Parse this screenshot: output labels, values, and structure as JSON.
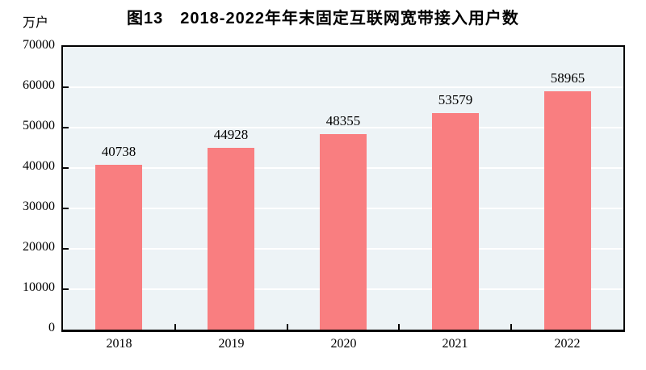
{
  "figure": {
    "title": "图13　2018-2022年年末固定互联网宽带接入用户数",
    "unit_label": "万户"
  },
  "chart_data": {
    "type": "bar",
    "title": "图13　2018-2022年年末固定互联网宽带接入用户数",
    "ylabel": "万户",
    "xlabel": "",
    "categories": [
      "2018",
      "2019",
      "2020",
      "2021",
      "2022"
    ],
    "values": [
      40738,
      44928,
      48355,
      53579,
      58965
    ],
    "data_labels": [
      "40738",
      "44928",
      "48355",
      "53579",
      "58965"
    ],
    "ylim": [
      0,
      70000
    ],
    "yticks": [
      0,
      10000,
      20000,
      30000,
      40000,
      50000,
      60000,
      70000
    ],
    "ytick_labels": [
      "0",
      "10000",
      "20000",
      "30000",
      "40000",
      "50000",
      "60000",
      "70000"
    ],
    "grid": true,
    "legend_position": "none",
    "colors": {
      "bar_fill": "#f97e80",
      "plot_background": "#edf3f6",
      "gridline": "#ffffff",
      "axis": "#000000",
      "text": "#000000",
      "page_background": "#ffffff"
    }
  }
}
